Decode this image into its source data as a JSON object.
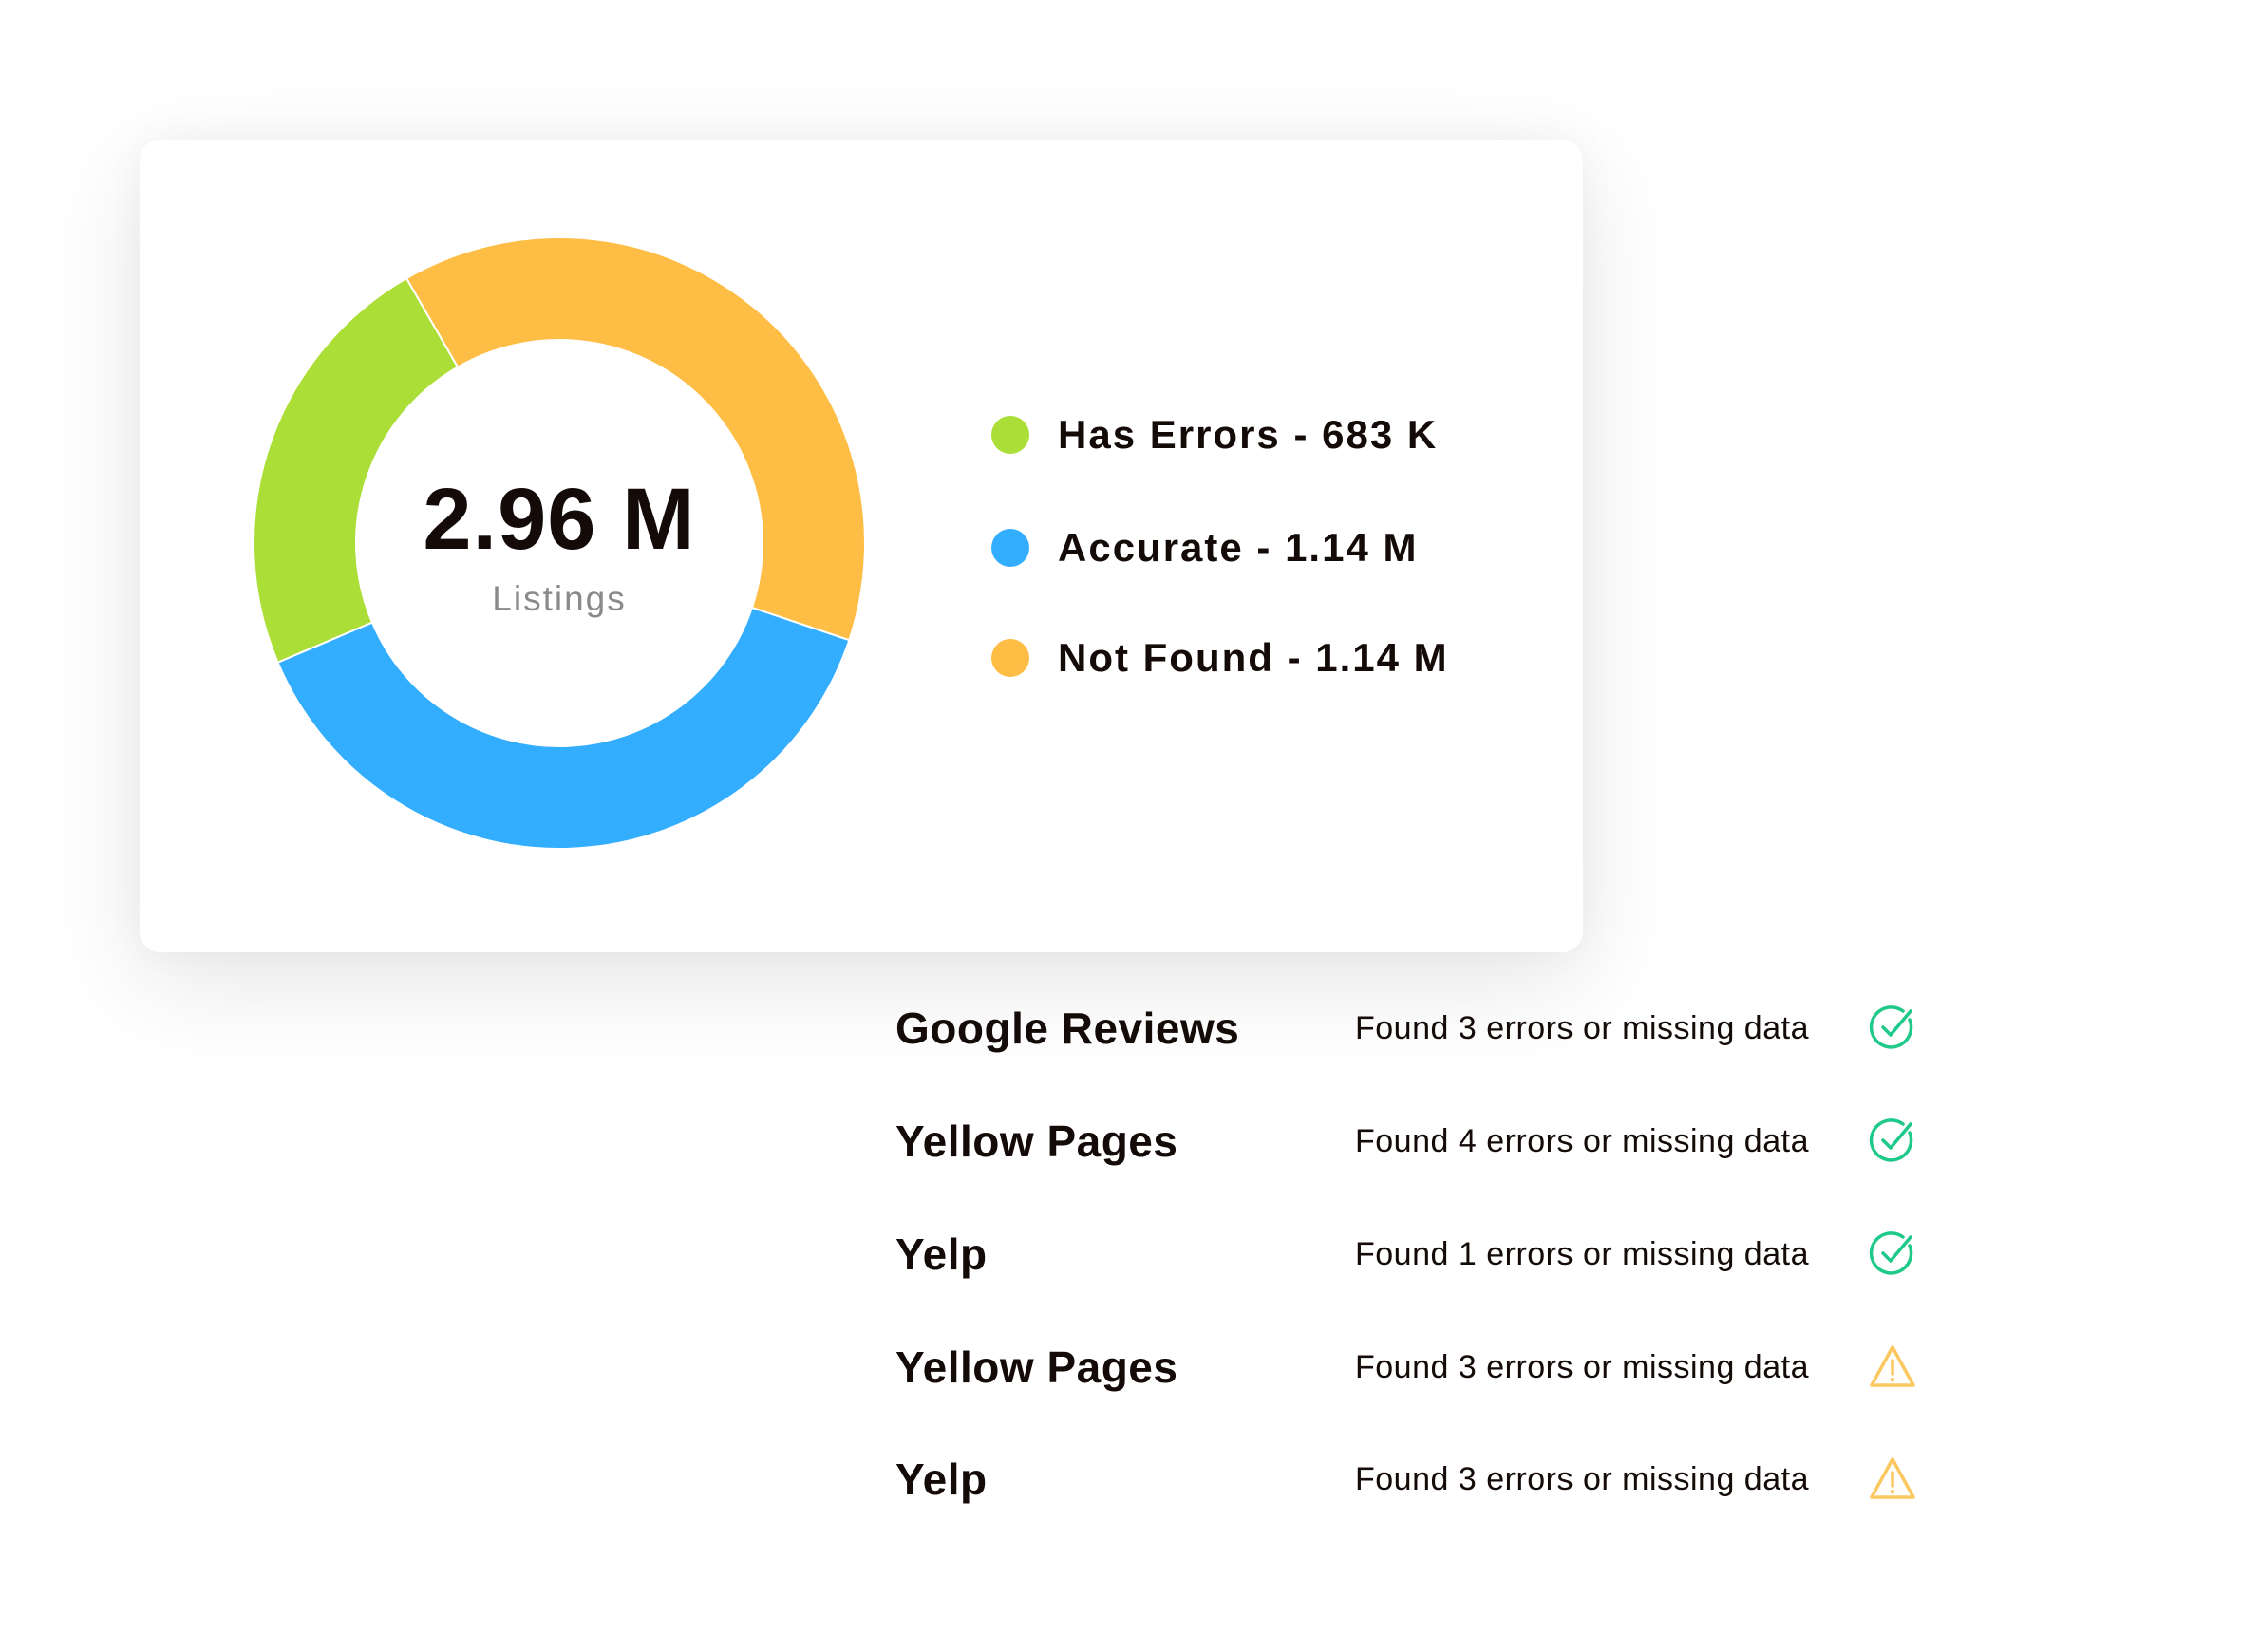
{
  "chart_data": {
    "type": "donut",
    "total_label": "2.96 M",
    "total_caption": "Listings",
    "series": [
      {
        "name": "Has Errors",
        "value": 683000,
        "label": "Has Errors - 683 K",
        "color": "#abde37"
      },
      {
        "name": "Accurate",
        "value": 1140000,
        "label": "Accurate - 1.14 M",
        "color": "#33adfd"
      },
      {
        "name": "Not Found",
        "value": 1140000,
        "label": "Not Found - 1.14 M",
        "color": "#febd44"
      }
    ],
    "legend": "right"
  },
  "list": [
    {
      "name": "Google Reviews",
      "desc": "Found 3 errors or missing data",
      "status": "check-circle-icon"
    },
    {
      "name": "Yellow Pages",
      "desc": "Found 4 errors or missing data",
      "status": "check-circle-icon"
    },
    {
      "name": "Yelp",
      "desc": "Found 1 errors or missing data",
      "status": "check-circle-icon"
    },
    {
      "name": "Yellow Pages",
      "desc": "Found 3 errors or missing data",
      "status": "warning-icon"
    },
    {
      "name": "Yelp",
      "desc": "Found 3 errors or missing data",
      "status": "warning-icon"
    }
  ],
  "colors": {
    "check": "#1fc98a",
    "warning": "#fbc760"
  }
}
